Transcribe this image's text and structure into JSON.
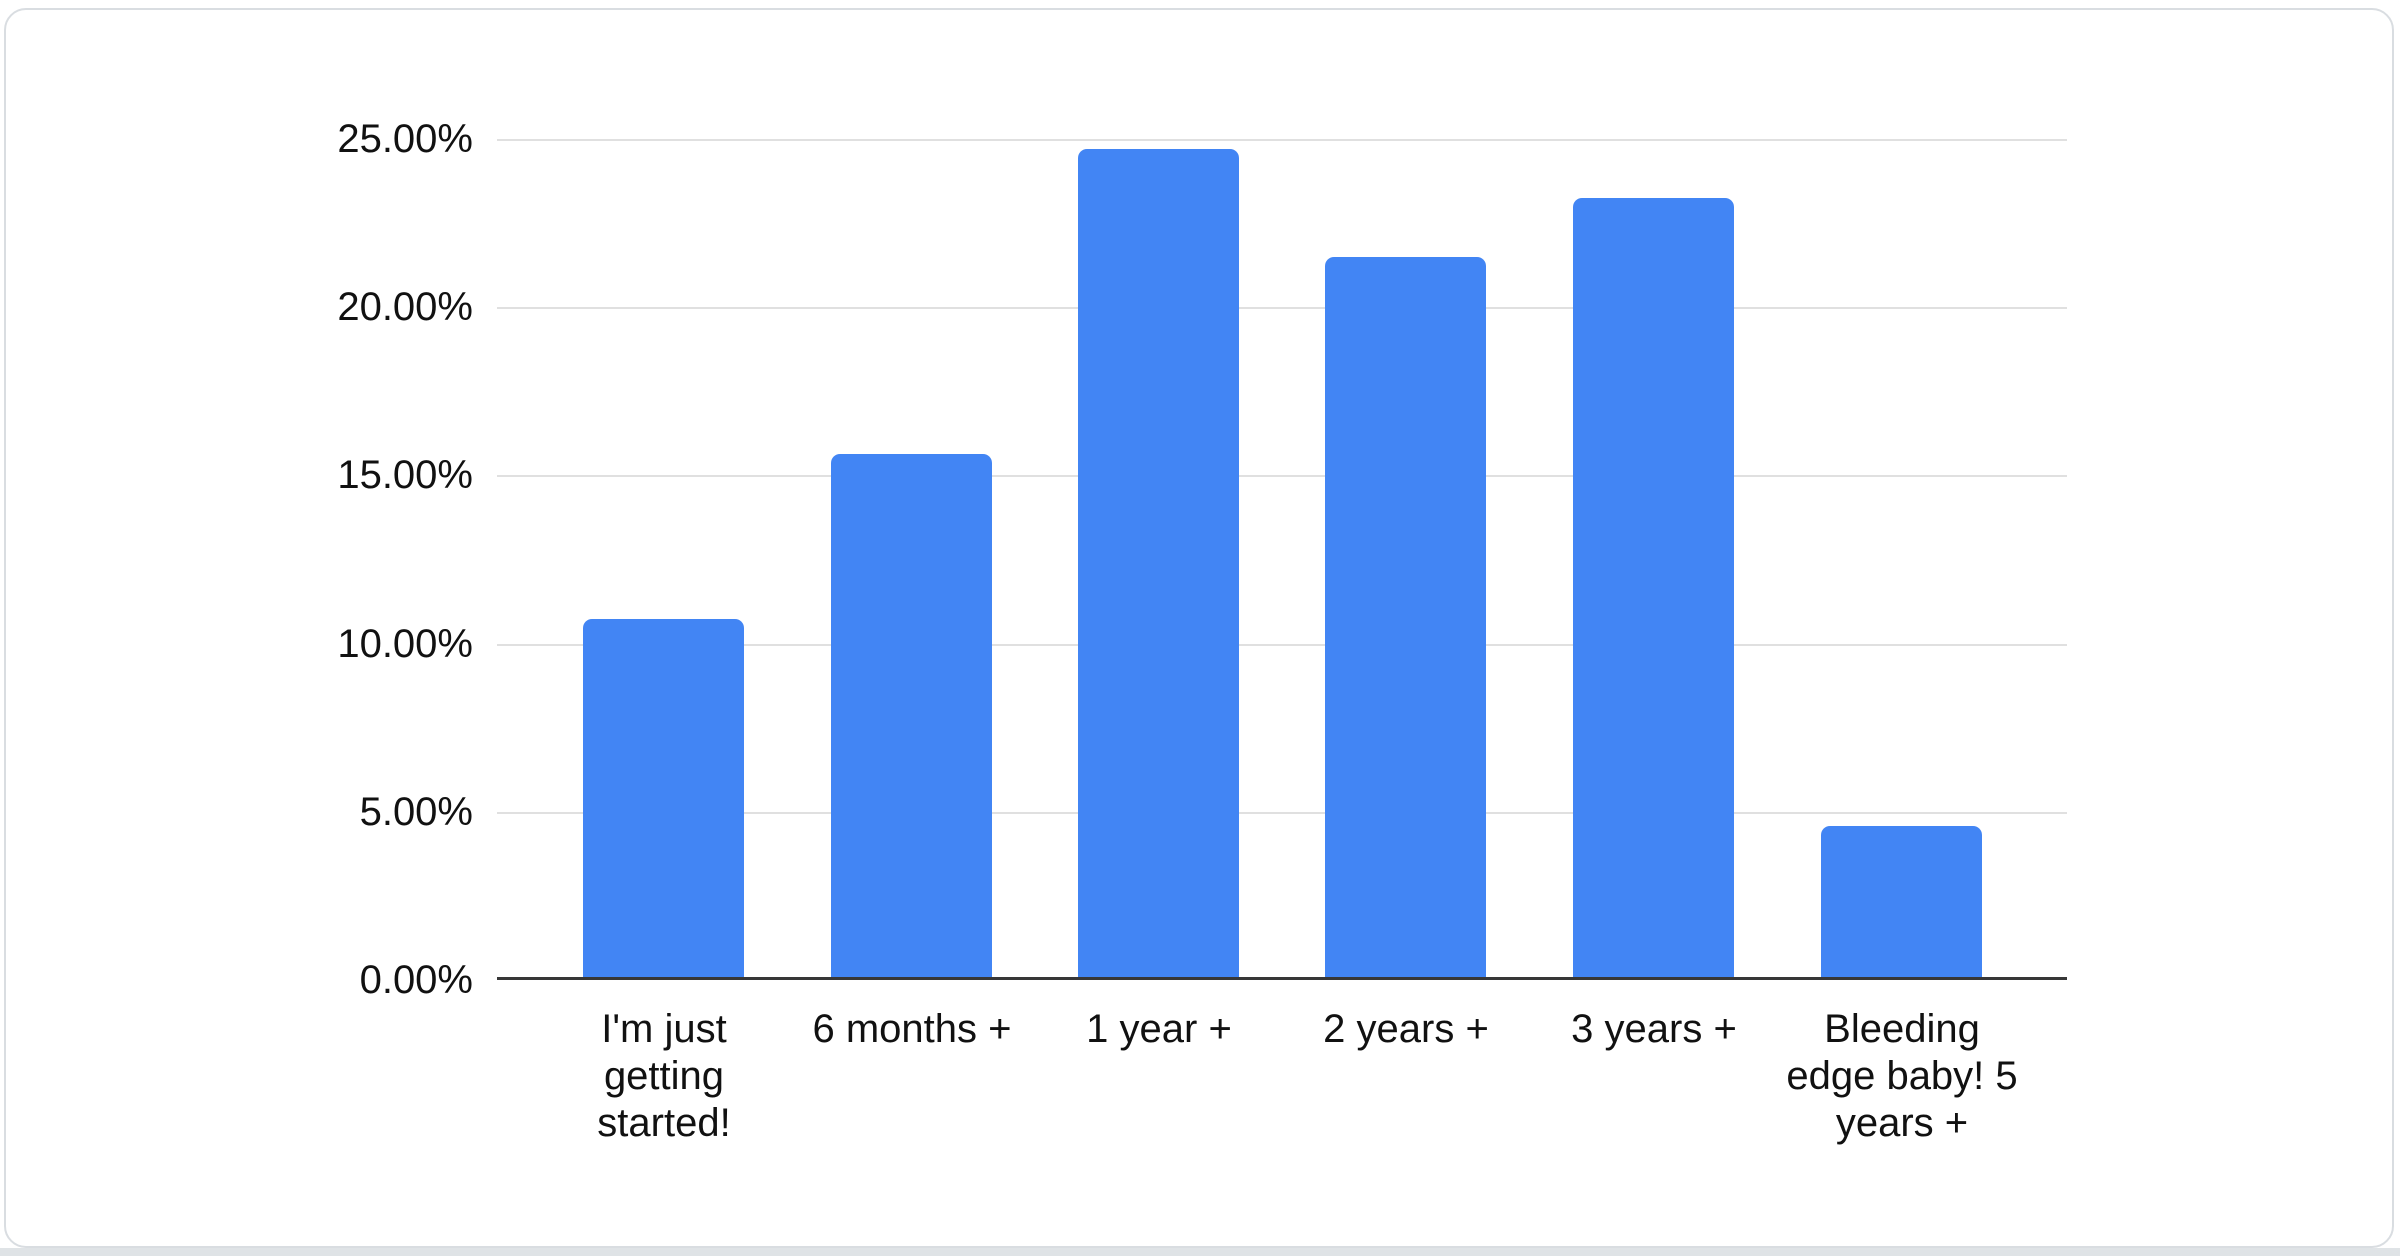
{
  "chart_data": {
    "type": "bar",
    "title": "",
    "xlabel": "",
    "ylabel": "",
    "categories": [
      "I'm just getting started!",
      "6 months +",
      "1 year +",
      "2 years +",
      "3 years +",
      "Bleeding edge baby! 5 years +"
    ],
    "values": [
      10.65,
      15.55,
      24.6,
      21.4,
      23.15,
      4.5
    ],
    "value_unit": "%",
    "ylim": [
      0,
      25
    ],
    "ytick_step": 5,
    "yticks_top_down": [
      "25.00%",
      "20.00%",
      "15.00%",
      "10.00%",
      "5.00%",
      "0.00%"
    ],
    "grid": "horizontal",
    "legend_position": "none",
    "bar_color": "#4285f4",
    "gridline_color": "#e0e0e0",
    "axis_color": "#373737",
    "label_color": "#111111",
    "card_border_color": "#d9dde1"
  }
}
